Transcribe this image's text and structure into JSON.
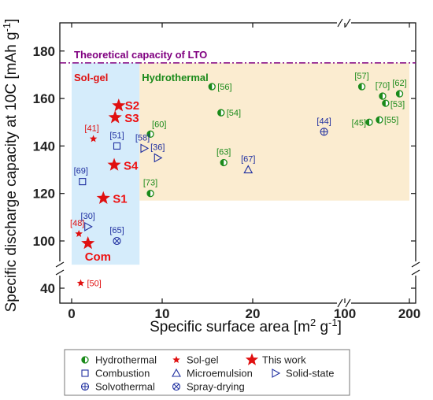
{
  "chart_data": {
    "type": "scatter",
    "xlabel": "Specific surface area [m² g⁻¹]",
    "ylabel": "Specific discharge capacity at 10C [mAh g⁻¹]",
    "x_break": [
      25,
      100
    ],
    "y_break": [
      45,
      90
    ],
    "x_ticks": [
      {
        "value": 0,
        "label": "0"
      },
      {
        "value": 10,
        "label": "10"
      },
      {
        "value": 20,
        "label": "20"
      },
      {
        "value": 100,
        "label": "100"
      },
      {
        "value": 200,
        "label": "200"
      }
    ],
    "y_ticks": [
      {
        "value": 40,
        "label": "40"
      },
      {
        "value": 100,
        "label": "100"
      },
      {
        "value": 120,
        "label": "120"
      },
      {
        "value": 140,
        "label": "140"
      },
      {
        "value": 160,
        "label": "160"
      },
      {
        "value": 180,
        "label": "180"
      }
    ],
    "theoretical_line": {
      "value": 175,
      "label": "Theoretical capacity of LTO",
      "color": "#800080"
    },
    "regions": [
      {
        "label": "Sol-gel",
        "x0": 0,
        "x1": 7.5,
        "y0": 90,
        "y1": 175,
        "color": "#d5ecfb",
        "text_color": "#e01010"
      },
      {
        "label": "Hydrothermal",
        "x0": 7.5,
        "x1": 200,
        "y0": 117,
        "y1": 175,
        "color": "#fbecd0",
        "text_color": "#1a8a1a"
      }
    ],
    "series": [
      {
        "name": "Hydrothermal",
        "marker": "half-circle",
        "color": "#1a8a1a",
        "points": [
          {
            "x": 15.5,
            "y": 165,
            "label": "[56]"
          },
          {
            "x": 16.5,
            "y": 154,
            "label": "[54]"
          },
          {
            "x": 16.8,
            "y": 133,
            "label": "[63]"
          },
          {
            "x": 8.7,
            "y": 145,
            "label": "[60]"
          },
          {
            "x": 8.7,
            "y": 120,
            "label": "[73]"
          },
          {
            "x": 120,
            "y": 165,
            "label": "[57]"
          },
          {
            "x": 150,
            "y": 161,
            "label": "[70]"
          },
          {
            "x": 155,
            "y": 158,
            "label": "[53]"
          },
          {
            "x": 180,
            "y": 162,
            "label": "[62]"
          },
          {
            "x": 130,
            "y": 150,
            "label": "[45]"
          },
          {
            "x": 145,
            "y": 151,
            "label": "[55]"
          }
        ]
      },
      {
        "name": "Sol-gel",
        "marker": "star-small",
        "color": "#e01010",
        "points": [
          {
            "x": 2.4,
            "y": 143,
            "label": "[41]"
          },
          {
            "x": 0.8,
            "y": 103,
            "label": "[48]"
          },
          {
            "x": 1.0,
            "y": 48,
            "label": "[50]"
          }
        ]
      },
      {
        "name": "This work",
        "marker": "star-large",
        "color": "#e01010",
        "points": [
          {
            "x": 5.2,
            "y": 157,
            "label": "S2"
          },
          {
            "x": 4.8,
            "y": 152,
            "label": "S3"
          },
          {
            "x": 4.7,
            "y": 132,
            "label": "S4"
          },
          {
            "x": 3.5,
            "y": 118,
            "label": "S1"
          },
          {
            "x": 1.8,
            "y": 99,
            "label": "Com"
          }
        ]
      },
      {
        "name": "Combustion",
        "marker": "square",
        "color": "#1f2fa0",
        "points": [
          {
            "x": 5.0,
            "y": 140,
            "label": "[51]"
          },
          {
            "x": 1.2,
            "y": 125,
            "label": "[69]"
          }
        ]
      },
      {
        "name": "Microemulsion",
        "marker": "triangle-up",
        "color": "#1f2fa0",
        "points": [
          {
            "x": 19.5,
            "y": 130,
            "label": "[67]"
          }
        ]
      },
      {
        "name": "Solid-state",
        "marker": "triangle-right",
        "color": "#1f2fa0",
        "points": [
          {
            "x": 8.0,
            "y": 139,
            "label": "[58]"
          },
          {
            "x": 9.5,
            "y": 135,
            "label": "[36]"
          },
          {
            "x": 1.8,
            "y": 106,
            "label": "[30]"
          }
        ]
      },
      {
        "name": "Solvothermal",
        "marker": "circle-plus",
        "color": "#1f2fa0",
        "points": [
          {
            "x": 80,
            "y": 146,
            "label": "[44]"
          }
        ]
      },
      {
        "name": "Spray-drying",
        "marker": "circle-x",
        "color": "#1f2fa0",
        "points": [
          {
            "x": 5.0,
            "y": 100,
            "label": "[65]"
          }
        ]
      }
    ]
  }
}
